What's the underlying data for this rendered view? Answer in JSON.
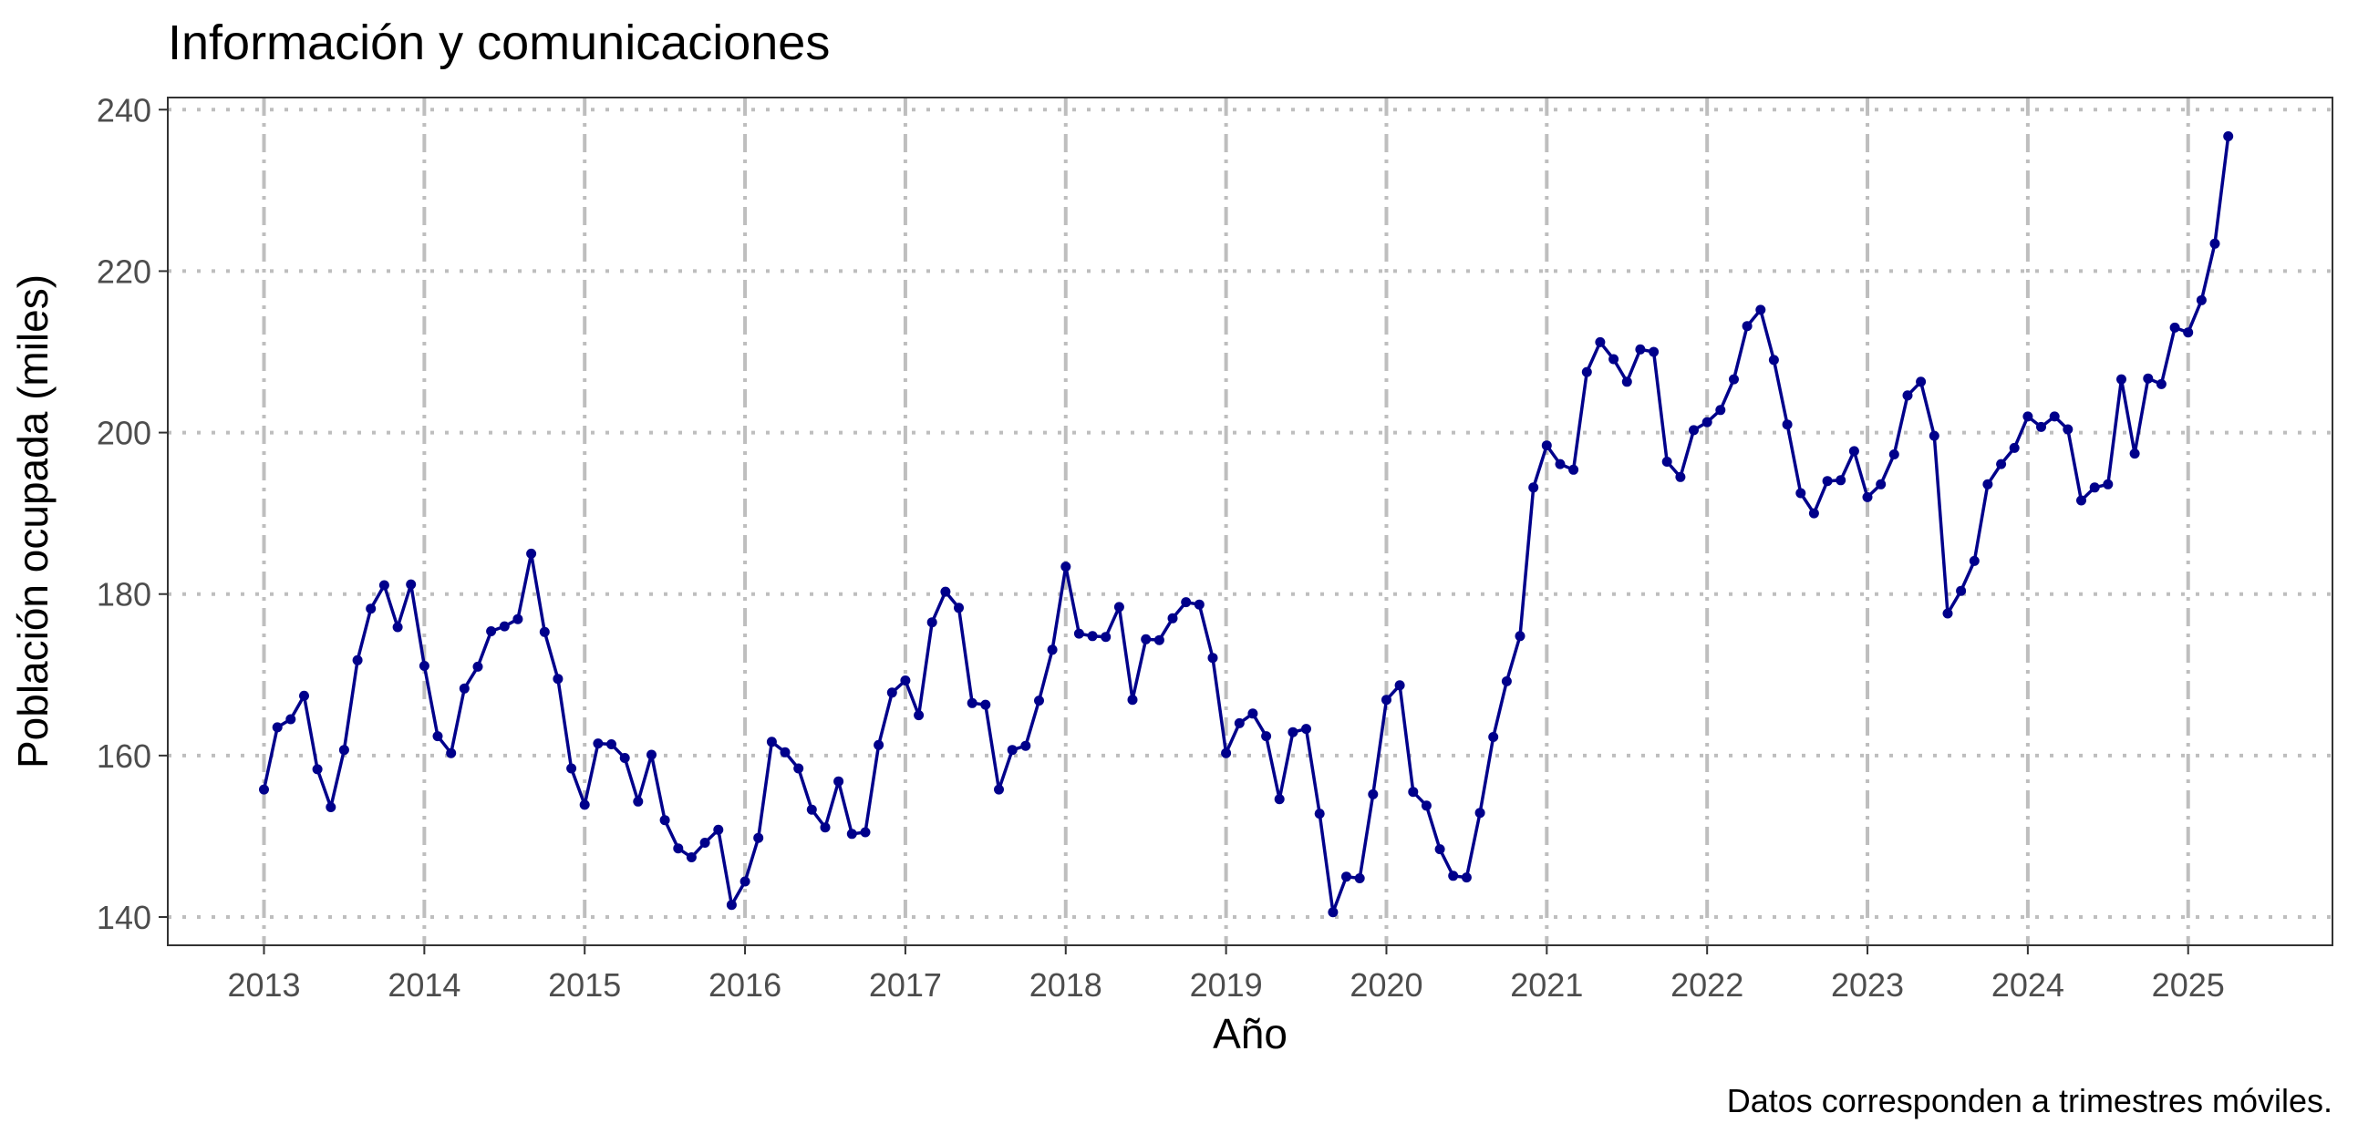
{
  "chart_data": {
    "type": "line",
    "title": "Información y comunicaciones",
    "xlabel": "Año",
    "ylabel": "Población ocupada (miles)",
    "caption": "Datos corresponden a trimestres móviles.",
    "x_ticks": [
      "2013",
      "2014",
      "2015",
      "2016",
      "2017",
      "2018",
      "2019",
      "2020",
      "2021",
      "2022",
      "2023",
      "2024",
      "2025"
    ],
    "y_ticks": [
      "140",
      "160",
      "180",
      "200",
      "220",
      "240"
    ],
    "xlim": [
      2012.4,
      2025.9
    ],
    "ylim": [
      136.5,
      241.5
    ],
    "grid": true,
    "colors": {
      "series": "#00008b",
      "grid": "#bebebe",
      "panel_border": "#333333",
      "tick_label": "#4d4d4d"
    },
    "series": [
      {
        "start_year": 2013,
        "values": [
          155.8,
          163.5,
          164.5,
          167.4,
          158.3,
          153.6,
          160.7,
          171.8,
          178.2,
          181.1,
          175.9,
          181.2,
          171.1,
          162.4,
          160.3,
          168.3,
          171.0,
          175.4,
          176.0,
          176.9,
          185.0,
          175.3,
          169.5,
          158.4,
          153.9,
          161.5,
          161.4,
          159.7,
          154.3,
          160.1,
          152.0,
          148.5,
          147.4,
          149.2,
          150.8,
          141.5,
          144.4,
          149.8,
          161.7,
          160.4,
          158.4,
          153.3,
          151.1,
          156.8,
          150.3,
          150.5,
          161.3,
          167.8,
          169.3,
          165.0,
          176.5,
          180.3,
          178.3,
          166.5,
          166.3,
          155.8,
          160.7,
          161.2,
          166.8,
          173.1,
          183.4,
          175.1,
          174.8,
          174.7,
          178.4,
          166.9,
          174.4,
          174.3,
          177.0,
          179.0,
          178.7,
          172.1,
          160.3,
          164.0,
          165.2,
          162.4,
          154.6,
          162.9,
          163.3,
          152.8,
          140.6,
          145.0,
          144.8,
          155.2,
          166.9,
          168.7,
          155.5,
          153.8,
          148.4,
          145.1,
          144.9,
          152.9,
          162.3,
          169.2,
          174.8,
          193.2,
          198.4,
          196.1,
          195.4,
          207.5,
          211.2,
          209.1,
          206.3,
          210.3,
          210.0,
          196.4,
          194.5,
          200.3,
          201.3,
          202.8,
          206.6,
          213.2,
          215.2,
          209.0,
          201.0,
          192.5,
          190.0,
          194.0,
          194.1,
          197.7,
          192.0,
          193.6,
          197.3,
          204.6,
          206.3,
          199.6,
          177.6,
          180.4,
          184.1,
          193.6,
          196.1,
          198.1,
          202.0,
          200.7,
          202.0,
          200.4,
          191.6,
          193.2,
          193.6,
          206.6,
          197.4,
          206.7,
          206.0,
          213.0,
          212.4,
          216.4,
          223.4,
          236.7
        ]
      }
    ]
  }
}
